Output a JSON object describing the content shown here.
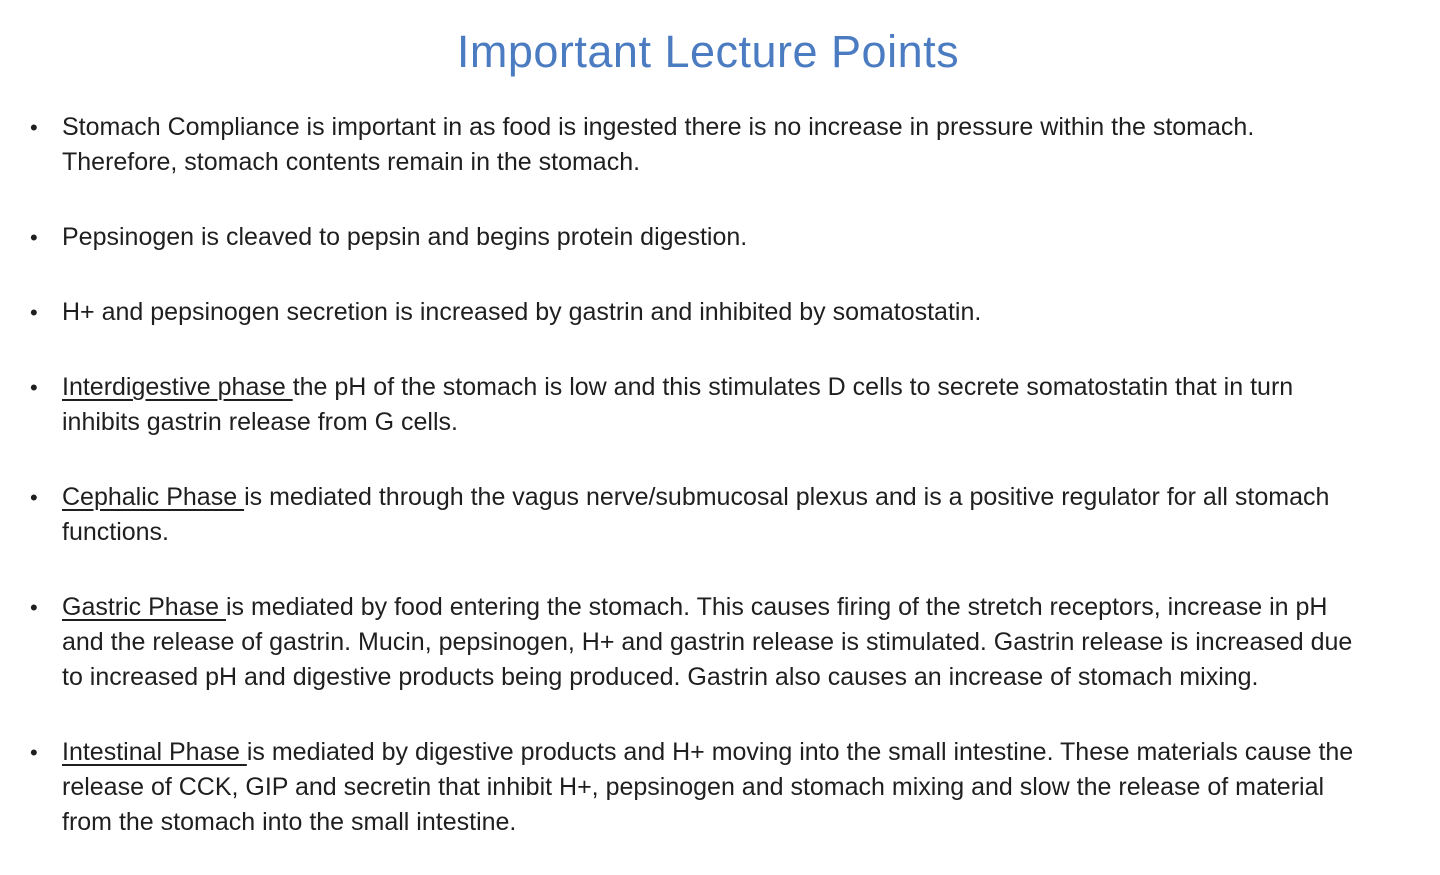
{
  "slide": {
    "title": "Important Lecture Points",
    "title_color": "#4b7cc1",
    "body_text_color": "#1f1f1f",
    "bullet_glyph": "•",
    "bullets": [
      {
        "lead": "",
        "rest": "Stomach Compliance is important in as food is ingested there is no increase in pressure within the stomach. Therefore, stomach contents remain in the stomach."
      },
      {
        "lead": "",
        "rest": "Pepsinogen is cleaved to pepsin and begins protein digestion."
      },
      {
        "lead": "",
        "rest": "H+ and pepsinogen secretion is increased by gastrin and inhibited by somatostatin."
      },
      {
        "lead": "Interdigestive phase ",
        "rest": "the pH of the stomach is low and this stimulates D cells to secrete somatostatin that in turn inhibits gastrin release from G cells."
      },
      {
        "lead": "Cephalic Phase ",
        "rest": "is mediated through the vagus nerve/submucosal plexus and is a positive regulator for all stomach functions."
      },
      {
        "lead": "Gastric Phase ",
        "rest": "is mediated by food entering the stomach. This causes firing of the stretch receptors, increase in pH and the release of gastrin. Mucin, pepsinogen, H+ and gastrin release is stimulated. Gastrin release is increased due to increased pH and digestive products being produced. Gastrin also causes an increase of stomach mixing."
      },
      {
        "lead": "Intestinal Phase ",
        "rest": "is mediated by digestive products and H+ moving into the small intestine. These materials cause the release of CCK, GIP and secretin that inhibit H+, pepsinogen and stomach mixing and slow the release of material from the stomach into the small intestine."
      }
    ]
  }
}
